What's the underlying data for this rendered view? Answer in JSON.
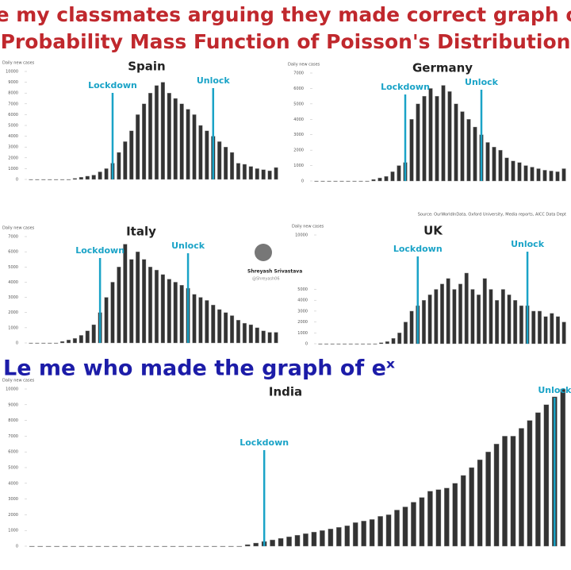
{
  "header": {
    "line1": "Le my classmates arguing they made correct graph of",
    "line2": "Probability Mass Function of Poisson's Distribution",
    "caption": "Le me who made the graph of eˣ"
  },
  "source": "Source: OurWorldInData, Oxford University, Media reports, AICC Data Dept",
  "watermark": {
    "name": "Shreyash Srivastava",
    "handle": "@Shreyash06"
  },
  "chart_data": [
    {
      "type": "bar",
      "title": "Spain",
      "ylabel": "Daily new cases",
      "color": "#333333",
      "ylim": [
        0,
        10000
      ],
      "yticks": [
        0,
        1000,
        2000,
        3000,
        4000,
        5000,
        6000,
        7000,
        8000,
        9000,
        10000
      ],
      "values": [
        0,
        0,
        0,
        0,
        0,
        0,
        0,
        100,
        200,
        300,
        400,
        700,
        1000,
        1500,
        2500,
        3500,
        4500,
        6000,
        7000,
        8000,
        8700,
        9000,
        8000,
        7500,
        7000,
        6500,
        6000,
        5000,
        4500,
        4000,
        3500,
        3000,
        2500,
        1500,
        1400,
        1200,
        1000,
        900,
        800,
        1100
      ],
      "annotations": [
        {
          "text": "Lockdown",
          "x": 13,
          "color": "#1aa3c7"
        },
        {
          "text": "Unlock",
          "x": 29,
          "color": "#1aa3c7"
        }
      ]
    },
    {
      "type": "bar",
      "title": "Germany",
      "ylabel": "Daily new cases",
      "color": "#333333",
      "ylim": [
        0,
        7000
      ],
      "yticks": [
        0,
        1000,
        2000,
        3000,
        4000,
        5000,
        6000,
        7000
      ],
      "values": [
        0,
        0,
        0,
        0,
        0,
        0,
        0,
        0,
        0,
        100,
        200,
        300,
        600,
        1000,
        1200,
        4000,
        5000,
        5500,
        6000,
        5500,
        6200,
        5800,
        5000,
        4500,
        4000,
        3500,
        3000,
        2500,
        2200,
        2000,
        1500,
        1300,
        1200,
        1000,
        900,
        800,
        700,
        650,
        600,
        800
      ],
      "annotations": [
        {
          "text": "Lockdown",
          "x": 14,
          "color": "#1aa3c7"
        },
        {
          "text": "Unlock",
          "x": 26,
          "color": "#1aa3c7"
        }
      ]
    },
    {
      "type": "bar",
      "title": "Italy",
      "ylabel": "Daily new cases",
      "color": "#333333",
      "ylim": [
        0,
        7000
      ],
      "yticks": [
        0,
        1000,
        2000,
        3000,
        4000,
        5000,
        6000,
        7000
      ],
      "values": [
        0,
        0,
        0,
        0,
        0,
        100,
        200,
        300,
        500,
        800,
        1200,
        2000,
        3000,
        4000,
        5000,
        6500,
        5500,
        6000,
        5500,
        5000,
        4800,
        4500,
        4200,
        4000,
        3800,
        3600,
        3200,
        3000,
        2800,
        2500,
        2200,
        2000,
        1800,
        1500,
        1300,
        1200,
        1000,
        800,
        700,
        700
      ],
      "annotations": [
        {
          "text": "Lockdown",
          "x": 11,
          "color": "#1aa3c7"
        },
        {
          "text": "Unlock",
          "x": 25,
          "color": "#1aa3c7"
        }
      ]
    },
    {
      "type": "bar",
      "title": "UK",
      "ylabel": "Daily new cases",
      "color": "#333333",
      "ylim": [
        0,
        10000
      ],
      "yticks": [
        0,
        1000,
        2000,
        3000,
        4000,
        5000,
        10000
      ],
      "values": [
        0,
        0,
        0,
        0,
        0,
        0,
        0,
        0,
        0,
        0,
        100,
        200,
        500,
        1000,
        2000,
        3000,
        3500,
        4000,
        4500,
        5000,
        5500,
        6000,
        5000,
        5500,
        6500,
        5000,
        4500,
        6000,
        5000,
        4000,
        5000,
        4500,
        4000,
        3500,
        3500,
        3000,
        3000,
        2500,
        2800,
        2500,
        2000
      ],
      "annotations": [
        {
          "text": "Lockdown",
          "x": 16,
          "color": "#1aa3c7"
        },
        {
          "text": "Unlock",
          "x": 34,
          "color": "#1aa3c7"
        }
      ]
    },
    {
      "type": "bar",
      "title": "India",
      "ylabel": "Daily new cases",
      "color": "#333333",
      "ylim": [
        0,
        10000
      ],
      "yticks": [
        0,
        1000,
        2000,
        3000,
        4000,
        5000,
        6000,
        7000,
        8000,
        9000,
        10000
      ],
      "values": [
        0,
        0,
        0,
        0,
        0,
        0,
        0,
        0,
        0,
        0,
        0,
        0,
        0,
        0,
        0,
        0,
        0,
        0,
        0,
        0,
        0,
        0,
        0,
        0,
        0,
        0,
        100,
        200,
        300,
        400,
        500,
        600,
        700,
        800,
        900,
        1000,
        1100,
        1200,
        1300,
        1500,
        1600,
        1700,
        1900,
        2000,
        2300,
        2500,
        2800,
        3100,
        3500,
        3600,
        3700,
        4000,
        4500,
        5000,
        5500,
        6000,
        6500,
        7000,
        7000,
        7500,
        8000,
        8500,
        9000,
        9500,
        10000
      ],
      "annotations": [
        {
          "text": "Lockdown",
          "x": 28,
          "color": "#1aa3c7"
        },
        {
          "text": "Unlock",
          "x": 63,
          "color": "#1aa3c7"
        }
      ]
    }
  ]
}
